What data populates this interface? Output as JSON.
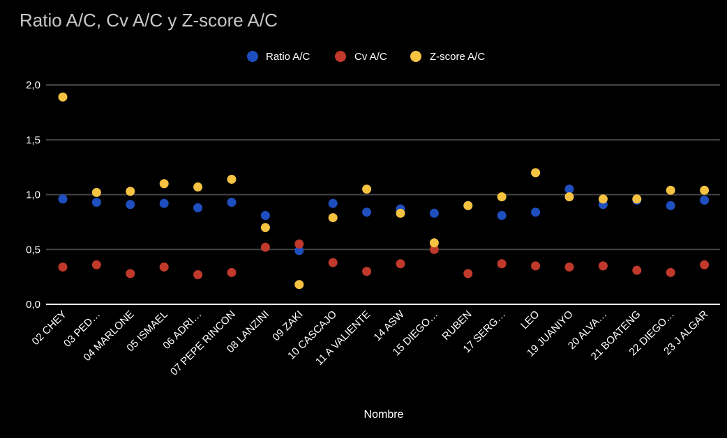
{
  "chart_data": {
    "type": "scatter",
    "title": "Ratio A/C, Cv A/C y Z-score A/C",
    "xlabel": "Nombre",
    "ylabel": "",
    "ylim": [
      0,
      2
    ],
    "yticks": [
      "0,0",
      "0,5",
      "1,0",
      "1,5",
      "2,0"
    ],
    "yticks_values": [
      0,
      0.5,
      1.0,
      1.5,
      2.0
    ],
    "grid": true,
    "legend_position": "top",
    "categories": [
      "02 CHEY",
      "03 PED…",
      "04  MARLONE",
      "05 ISMAEL",
      "06 ADRI…",
      "07 PEPE RINCON",
      "08 LANZINI",
      "09 ZAKI",
      "10 CASCAJO",
      "11 A VALIENTE",
      "14 ASW",
      "15  DIEGO…",
      "RUBEN",
      "17 SERG…",
      "LEO",
      "19 JUANIYO",
      "20 ALVA…",
      "21 BOATENG",
      "22 DIEGO…",
      "23 J ALGAR"
    ],
    "series": [
      {
        "name": "Ratio A/C",
        "color": "#1f4fbf",
        "values": [
          0.96,
          0.93,
          0.91,
          0.92,
          0.88,
          0.93,
          0.81,
          0.49,
          0.92,
          0.84,
          0.87,
          0.83,
          0.9,
          0.81,
          0.84,
          1.05,
          0.91,
          0.95,
          0.9,
          0.95
        ]
      },
      {
        "name": "Cv A/C",
        "color": "#c0392b",
        "values": [
          0.34,
          0.36,
          0.28,
          0.34,
          0.27,
          0.29,
          0.52,
          0.55,
          0.38,
          0.3,
          0.37,
          0.5,
          0.28,
          0.37,
          0.35,
          0.34,
          0.35,
          0.31,
          0.29,
          0.36
        ]
      },
      {
        "name": "Z-score A/C",
        "color": "#f5c242",
        "values": [
          1.89,
          1.02,
          1.03,
          1.1,
          1.07,
          1.14,
          0.7,
          0.18,
          0.79,
          1.05,
          0.83,
          0.56,
          0.9,
          0.98,
          1.2,
          0.98,
          0.96,
          0.96,
          1.04,
          1.04
        ]
      }
    ]
  }
}
